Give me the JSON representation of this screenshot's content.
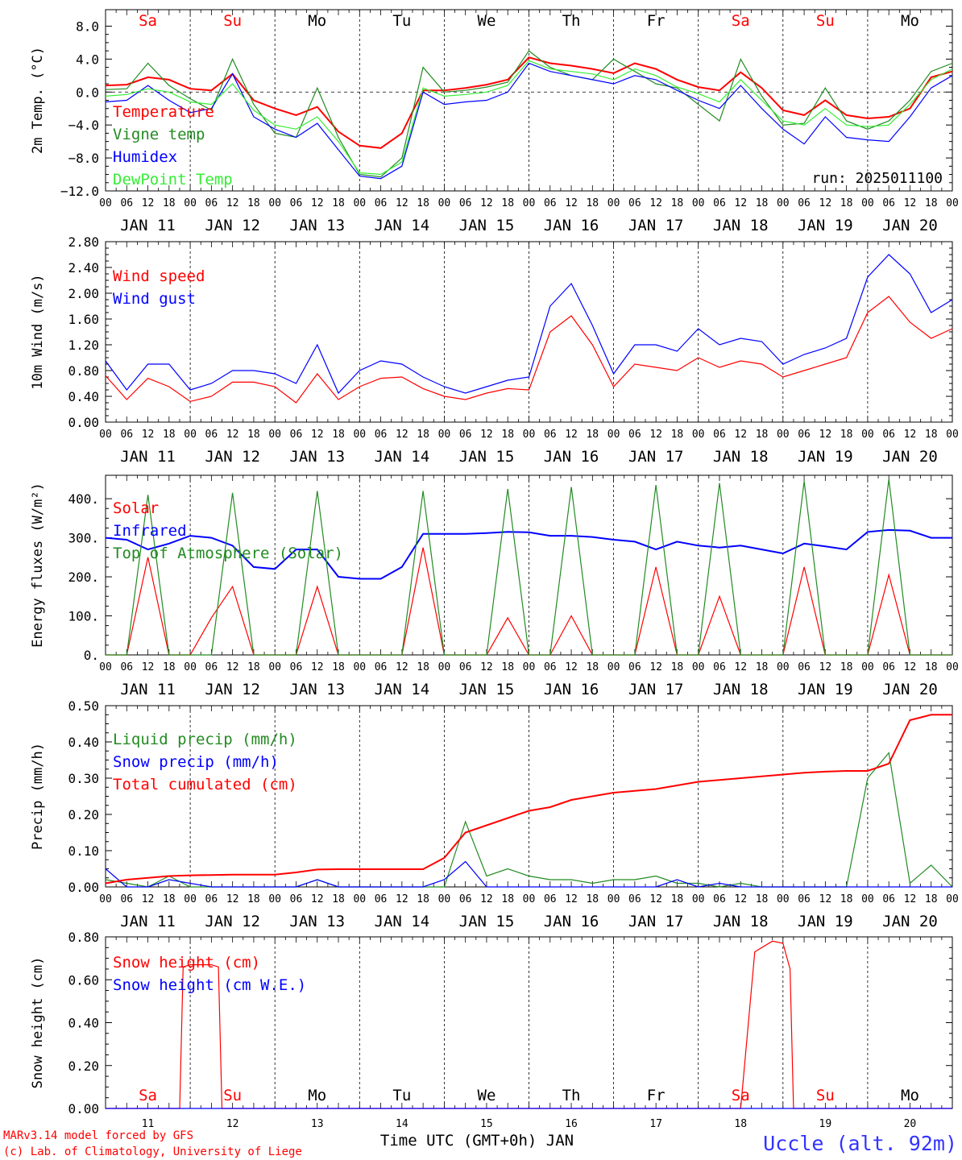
{
  "footer": {
    "credit_line1": "MARv3.14 model forced by GFS",
    "credit_line2": "(c) Lab. of Climatology, University of Liege",
    "xlabel": "Time UTC (GMT+0h) JAN",
    "station": "Uccle (alt. 92m)"
  },
  "days": {
    "weekdays": [
      "Sa",
      "Su",
      "Mo",
      "Tu",
      "We",
      "Th",
      "Fr",
      "Sa",
      "Su",
      "Mo"
    ],
    "weekend_flags": [
      true,
      true,
      false,
      false,
      false,
      false,
      false,
      true,
      true,
      false
    ],
    "date_labels": [
      "JAN 11",
      "JAN 12",
      "JAN 13",
      "JAN 14",
      "JAN 15",
      "JAN 16",
      "JAN 17",
      "JAN 18",
      "JAN 19",
      "JAN 20"
    ],
    "day_numbers": [
      "11",
      "12",
      "13",
      "14",
      "15",
      "16",
      "17",
      "18",
      "19",
      "20"
    ],
    "hour_ticks": [
      "00",
      "06",
      "12",
      "18"
    ],
    "final_tick": "00"
  },
  "colors": {
    "red": "#ff0000",
    "green": "#228b22",
    "blue": "#0000ff",
    "lightgreen": "#33ee33",
    "grid": "#000000"
  },
  "chart_data": [
    {
      "type": "line",
      "ylabel": "2m Temp. (°C)",
      "ylim": [
        -12,
        10
      ],
      "yticks": [
        -12,
        -8,
        -4,
        0,
        4,
        8
      ],
      "ytick_labels": [
        "−12.0",
        "−8.0",
        "−4.0",
        "0.0",
        "4.0",
        "8.0"
      ],
      "annotation": "run: 2025011100",
      "zero_line": true,
      "x_hours": [
        0,
        6,
        12,
        18,
        24,
        30,
        36,
        42,
        48,
        54,
        60,
        66,
        72,
        78,
        84,
        90,
        96,
        102,
        108,
        114,
        120,
        126,
        132,
        138,
        144,
        150,
        156,
        162,
        168,
        174,
        180,
        186,
        192,
        198,
        204,
        210,
        216,
        222,
        228,
        234
      ],
      "series": [
        {
          "name": "Temperature",
          "color": "red",
          "values": [
            0.8,
            0.9,
            1.8,
            1.5,
            0.4,
            0.2,
            2.2,
            -1.0,
            -2.0,
            -2.8,
            -1.8,
            -4.8,
            -6.5,
            -6.8,
            -5.0,
            0.2,
            0.2,
            0.5,
            0.9,
            1.5,
            4.2,
            3.5,
            3.2,
            2.8,
            2.3,
            3.5,
            2.8,
            1.5,
            0.6,
            0.2,
            2.4,
            0.5,
            -2.2,
            -2.8,
            -1.0,
            -2.8,
            -3.2,
            -3.0,
            -2.0,
            1.8
          ]
        },
        {
          "name": "Vigne temp",
          "color": "green",
          "values": [
            0.3,
            0.4,
            3.5,
            0.8,
            -0.8,
            -2.2,
            4.0,
            -1.5,
            -5.0,
            -5.5,
            0.5,
            -5.5,
            -10.0,
            -10.3,
            -8.0,
            3.0,
            0.0,
            0.2,
            0.6,
            1.2,
            5.0,
            3.0,
            2.0,
            1.5,
            4.0,
            2.5,
            1.0,
            0.5,
            -1.5,
            -3.5,
            4.0,
            -0.5,
            -4.0,
            -3.8,
            0.5,
            -3.5,
            -4.5,
            -3.5,
            -1.0,
            2.5
          ]
        },
        {
          "name": "Humidex",
          "color": "blue",
          "values": [
            -1.2,
            -1.0,
            0.8,
            -1.0,
            -2.5,
            -2.0,
            2.2,
            -3.0,
            -4.5,
            -5.5,
            -3.8,
            -7.0,
            -10.2,
            -10.5,
            -9.0,
            0.0,
            -1.5,
            -1.2,
            -1.0,
            0.0,
            3.5,
            2.5,
            2.0,
            1.5,
            1.0,
            2.0,
            1.5,
            0.2,
            -1.0,
            -2.0,
            0.8,
            -2.0,
            -4.5,
            -6.3,
            -3.0,
            -5.5,
            -5.8,
            -6.0,
            -3.0,
            0.5
          ]
        },
        {
          "name": "DewPoint Temp",
          "color": "lightgreen",
          "values": [
            -0.5,
            -0.3,
            0.4,
            0.0,
            -1.2,
            -1.5,
            1.0,
            -2.2,
            -4.0,
            -4.5,
            -3.0,
            -6.0,
            -9.8,
            -10.0,
            -8.5,
            0.5,
            -0.5,
            -0.3,
            0.0,
            0.8,
            3.8,
            2.8,
            2.5,
            2.2,
            1.5,
            2.8,
            2.0,
            0.6,
            -0.2,
            -1.2,
            1.5,
            -1.0,
            -3.5,
            -4.0,
            -2.0,
            -4.0,
            -4.2,
            -4.0,
            -1.5,
            1.5
          ]
        }
      ],
      "extra_points": {
        "hours": [
          240
        ],
        "values": {
          "Temperature": [
            2.5
          ],
          "Vigne temp": [
            3.5
          ],
          "Humidex": [
            2.0
          ],
          "DewPoint Temp": [
            2.8
          ]
        }
      }
    },
    {
      "type": "line",
      "ylabel": "10m Wind (m/s)",
      "ylim": [
        0,
        2.8
      ],
      "yticks": [
        0,
        0.4,
        0.8,
        1.2,
        1.6,
        2.0,
        2.4,
        2.8
      ],
      "ytick_labels": [
        "0.00",
        "0.40",
        "0.80",
        "1.20",
        "1.60",
        "2.00",
        "2.40",
        "2.80"
      ],
      "x_hours": [
        0,
        6,
        12,
        18,
        24,
        30,
        36,
        42,
        48,
        54,
        60,
        66,
        72,
        78,
        84,
        90,
        96,
        102,
        108,
        114,
        120,
        126,
        132,
        138,
        144,
        150,
        156,
        162,
        168,
        174,
        180,
        186,
        192,
        198,
        204,
        210,
        216,
        222,
        228,
        234,
        240
      ],
      "series": [
        {
          "name": "Wind speed",
          "color": "red",
          "values": [
            0.72,
            0.35,
            0.68,
            0.55,
            0.32,
            0.4,
            0.62,
            0.62,
            0.55,
            0.3,
            0.75,
            0.35,
            0.55,
            0.68,
            0.7,
            0.52,
            0.4,
            0.35,
            0.45,
            0.52,
            0.5,
            1.4,
            1.65,
            1.2,
            0.55,
            0.9,
            0.85,
            0.8,
            1.0,
            0.85,
            0.95,
            0.9,
            0.7,
            0.8,
            0.9,
            1.0,
            1.7,
            1.95,
            1.55,
            1.3,
            1.45
          ]
        },
        {
          "name": "Wind gust",
          "color": "blue",
          "values": [
            0.95,
            0.5,
            0.9,
            0.9,
            0.5,
            0.6,
            0.8,
            0.8,
            0.75,
            0.6,
            1.2,
            0.45,
            0.8,
            0.95,
            0.9,
            0.7,
            0.55,
            0.45,
            0.55,
            0.65,
            0.7,
            1.8,
            2.15,
            1.5,
            0.75,
            1.2,
            1.2,
            1.1,
            1.45,
            1.2,
            1.3,
            1.25,
            0.9,
            1.05,
            1.15,
            1.3,
            2.25,
            2.6,
            2.3,
            1.7,
            1.9
          ]
        }
      ]
    },
    {
      "type": "line",
      "ylabel": "Energy fluxes (W/m²)",
      "ylim": [
        0,
        460
      ],
      "yticks": [
        0,
        100,
        200,
        300,
        400
      ],
      "ytick_labels": [
        "0.",
        "100.",
        "200.",
        "300.",
        "400."
      ],
      "x_hours": [
        0,
        6,
        12,
        18,
        24,
        30,
        36,
        42,
        48,
        54,
        60,
        66,
        72,
        78,
        84,
        90,
        96,
        102,
        108,
        114,
        120,
        126,
        132,
        138,
        144,
        150,
        156,
        162,
        168,
        174,
        180,
        186,
        192,
        198,
        204,
        210,
        216,
        222,
        228,
        234,
        240
      ],
      "series": [
        {
          "name": "Solar",
          "color": "red",
          "values": [
            0,
            0,
            250,
            0,
            0,
            95,
            175,
            0,
            0,
            0,
            175,
            0,
            0,
            0,
            0,
            275,
            0,
            0,
            0,
            95,
            0,
            0,
            100,
            0,
            0,
            0,
            225,
            0,
            0,
            150,
            0,
            0,
            0,
            225,
            0,
            0,
            0,
            205,
            0,
            0,
            0
          ]
        },
        {
          "name": "Infrared",
          "color": "blue",
          "values": [
            300,
            295,
            270,
            285,
            305,
            300,
            280,
            225,
            220,
            270,
            270,
            200,
            195,
            195,
            225,
            310,
            310,
            310,
            312,
            315,
            314,
            305,
            305,
            302,
            295,
            290,
            270,
            290,
            280,
            275,
            280,
            270,
            260,
            285,
            278,
            270,
            315,
            320,
            318,
            300,
            300
          ]
        },
        {
          "name": "Top of Atmosphere (Solar)",
          "color": "green",
          "values": [
            0,
            0,
            410,
            0,
            0,
            0,
            415,
            0,
            0,
            0,
            420,
            0,
            0,
            0,
            0,
            420,
            0,
            0,
            0,
            425,
            0,
            0,
            430,
            0,
            0,
            0,
            435,
            0,
            0,
            440,
            0,
            0,
            0,
            445,
            0,
            0,
            0,
            450,
            0,
            0,
            0
          ]
        }
      ]
    },
    {
      "type": "line",
      "ylabel": "Precip (mm/h)",
      "ylim": [
        0,
        0.5
      ],
      "yticks": [
        0,
        0.1,
        0.2,
        0.3,
        0.4,
        0.5
      ],
      "ytick_labels": [
        "0.00",
        "0.10",
        "0.20",
        "0.30",
        "0.40",
        "0.50"
      ],
      "x_hours": [
        0,
        6,
        12,
        18,
        24,
        30,
        36,
        42,
        48,
        54,
        60,
        66,
        72,
        78,
        84,
        90,
        96,
        102,
        108,
        114,
        120,
        126,
        132,
        138,
        144,
        150,
        156,
        162,
        168,
        174,
        180,
        186,
        192,
        198,
        204,
        210,
        216,
        222,
        228,
        234,
        240
      ],
      "series": [
        {
          "name": "Liquid precip (mm/h)",
          "color": "green",
          "values": [
            0.02,
            0.01,
            0.0,
            0.03,
            0.0,
            0.0,
            0.0,
            0.0,
            0.0,
            0.0,
            0.02,
            0.0,
            0.0,
            0.0,
            0.0,
            0.0,
            0.0,
            0.18,
            0.03,
            0.05,
            0.03,
            0.02,
            0.02,
            0.01,
            0.02,
            0.02,
            0.03,
            0.01,
            0.01,
            0.0,
            0.01,
            0.0,
            0.0,
            0.0,
            0.0,
            0.0,
            0.3,
            0.37,
            0.01,
            0.06,
            0.0
          ]
        },
        {
          "name": "Snow precip (mm/h)",
          "color": "blue",
          "values": [
            0.05,
            0.0,
            0.0,
            0.02,
            0.01,
            0.0,
            0.0,
            0.0,
            0.0,
            0.0,
            0.02,
            0.0,
            0.0,
            0.0,
            0.0,
            0.0,
            0.02,
            0.07,
            0.0,
            0.0,
            0.0,
            0.0,
            0.0,
            0.0,
            0.0,
            0.0,
            0.0,
            0.02,
            0.0,
            0.01,
            0.0,
            0.0,
            0.0,
            0.0,
            0.0,
            0.0,
            0.0,
            0.0,
            0.0,
            0.0,
            0.0
          ]
        },
        {
          "name": "Total cumulated (cm)",
          "color": "red",
          "values": [
            0.01,
            0.02,
            0.025,
            0.03,
            0.032,
            0.033,
            0.034,
            0.034,
            0.034,
            0.04,
            0.048,
            0.049,
            0.049,
            0.049,
            0.049,
            0.049,
            0.08,
            0.15,
            0.17,
            0.19,
            0.21,
            0.22,
            0.24,
            0.25,
            0.26,
            0.265,
            0.27,
            0.28,
            0.29,
            0.295,
            0.3,
            0.305,
            0.31,
            0.315,
            0.318,
            0.32,
            0.32,
            0.34,
            0.46,
            0.475,
            0.475
          ]
        }
      ]
    },
    {
      "type": "line",
      "ylabel": "Snow height (cm)",
      "ylim": [
        0,
        0.8
      ],
      "yticks": [
        0,
        0.2,
        0.4,
        0.6,
        0.8
      ],
      "ytick_labels": [
        "0.00",
        "0.20",
        "0.40",
        "0.60",
        "0.80"
      ],
      "bottom_axis": "day_numbers",
      "x_hours": [
        0,
        21,
        22,
        24,
        30,
        32,
        33,
        34,
        180,
        184,
        189,
        192,
        194,
        195,
        240
      ],
      "series": [
        {
          "name": "Snow height (cm)",
          "color": "red",
          "values": [
            0,
            0,
            0.66,
            0.67,
            0.67,
            0.66,
            0.0,
            0.0,
            0.0,
            0.73,
            0.78,
            0.77,
            0.65,
            0.0,
            0.0
          ]
        },
        {
          "name": "Snow height (cm W.E.)",
          "color": "blue",
          "values": [
            0,
            0,
            0,
            0,
            0,
            0,
            0,
            0,
            0,
            0,
            0,
            0,
            0,
            0,
            0
          ]
        }
      ]
    }
  ]
}
